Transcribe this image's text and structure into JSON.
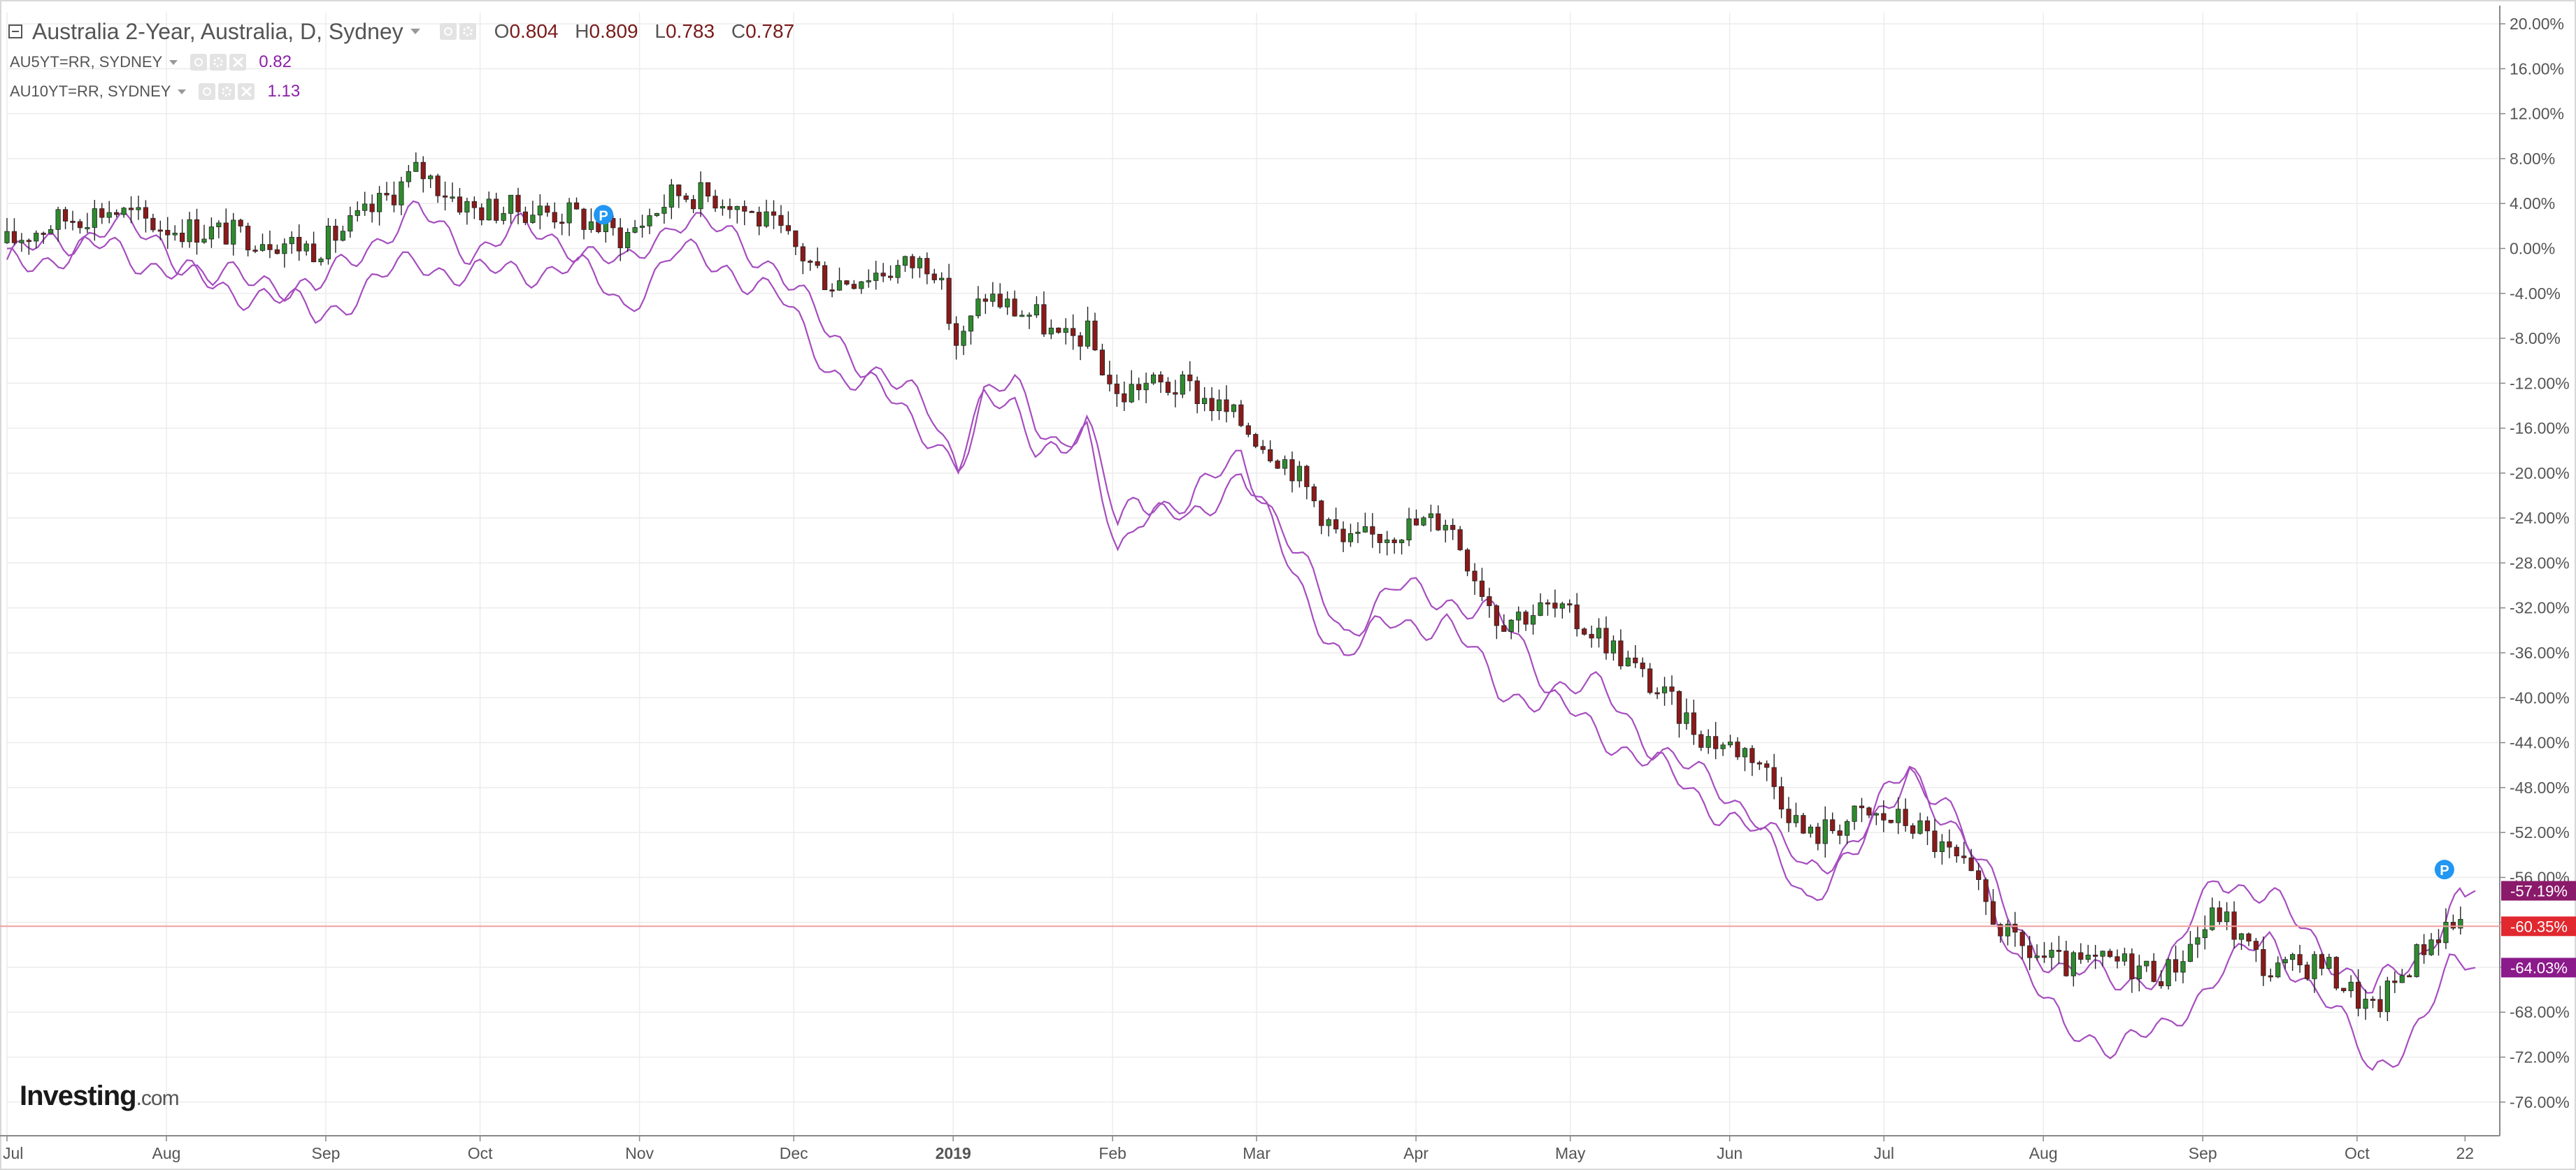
{
  "legend": {
    "main_title": "Australia 2-Year, Australia, D, Sydney",
    "ohlc": {
      "o_label": "O",
      "o": "0.804",
      "h_label": "H",
      "h": "0.809",
      "l_label": "L",
      "l": "0.783",
      "c_label": "C",
      "c": "0.787"
    },
    "series": [
      {
        "name": "AU5YT=RR, SYDNEY",
        "value": "0.82"
      },
      {
        "name": "AU10YT=RR, SYDNEY",
        "value": "1.13"
      }
    ]
  },
  "logo": {
    "brand": "Investing",
    "suffix": ".com"
  },
  "colors": {
    "up": "#2e8b2e",
    "down": "#8b1a1a",
    "compare_line": "#a64dbf",
    "badge_5y": "#8b1a6b",
    "badge_main": "#e0282e",
    "badge_10y": "#8b1a8b",
    "marker": "#2196f3",
    "grid": "#ececec",
    "current_line": "#f2a0a0"
  },
  "chart_data": {
    "type": "line",
    "title": "Australia 2-Year, Australia, D, Sydney",
    "xlabel": "",
    "ylabel": "",
    "y_unit": "%",
    "ylim": [
      -79.0,
      21.0
    ],
    "y_ticks": [
      "20.00%",
      "16.00%",
      "12.00%",
      "8.00%",
      "4.00%",
      "0.00%",
      "-4.00%",
      "-8.00%",
      "-12.00%",
      "-16.00%",
      "-20.00%",
      "-24.00%",
      "-28.00%",
      "-32.00%",
      "-36.00%",
      "-40.00%",
      "-44.00%",
      "-48.00%",
      "-52.00%",
      "-56.00%",
      "-60.00%",
      "-64.00%",
      "-68.00%",
      "-72.00%",
      "-76.00%"
    ],
    "x_ticks": [
      {
        "label": "Jul",
        "t": 0
      },
      {
        "label": "Aug",
        "t": 31
      },
      {
        "label": "Sep",
        "t": 62
      },
      {
        "label": "Oct",
        "t": 92
      },
      {
        "label": "Nov",
        "t": 123
      },
      {
        "label": "Dec",
        "t": 153
      },
      {
        "label": "2019",
        "t": 184
      },
      {
        "label": "Feb",
        "t": 215
      },
      {
        "label": "Mar",
        "t": 243
      },
      {
        "label": "Apr",
        "t": 274
      },
      {
        "label": "May",
        "t": 304
      },
      {
        "label": "Jun",
        "t": 335
      },
      {
        "label": "Jul",
        "t": 365
      },
      {
        "label": "Aug",
        "t": 396
      },
      {
        "label": "Sep",
        "t": 427
      },
      {
        "label": "Oct",
        "t": 457
      },
      {
        "label": "22",
        "t": 478
      }
    ],
    "candles": {
      "name": "Australia 2-Year",
      "close_t": [
        0,
        10,
        20,
        30,
        40,
        50,
        60,
        70,
        80,
        90,
        100,
        110,
        120,
        130,
        140,
        150,
        160,
        170,
        180,
        185,
        190,
        196,
        200,
        205,
        210,
        216,
        220,
        230,
        240,
        250,
        260,
        270,
        280,
        290,
        300,
        310,
        320,
        330,
        340,
        350,
        360,
        370,
        380,
        390,
        400,
        410,
        420,
        430,
        440,
        450,
        460,
        470,
        475,
        480
      ],
      "close": [
        0.5,
        2.5,
        3.5,
        2.0,
        1.5,
        1.0,
        0.0,
        3.0,
        7.0,
        3.5,
        3.5,
        3.0,
        1.0,
        5.0,
        4.5,
        1.5,
        -3.0,
        -2.0,
        -1.0,
        -9.0,
        -4.0,
        -5.5,
        -6.0,
        -8.5,
        -7.5,
        -13.5,
        -12.0,
        -12.5,
        -15.5,
        -19.5,
        -26.5,
        -25.0,
        -24.0,
        -33.0,
        -32.0,
        -34.5,
        -39.0,
        -43.5,
        -45.0,
        -52.5,
        -50.5,
        -51.0,
        -55.0,
        -62.0,
        -64.0,
        -63.5,
        -64.5,
        -59.0,
        -64.5,
        -63.5,
        -68.0,
        -62.0,
        -60.0,
        -60.35
      ]
    },
    "series": [
      {
        "name": "AU5YT=RR, SYDNEY",
        "current": "-57.19%",
        "t": [
          0,
          10,
          20,
          30,
          40,
          50,
          60,
          70,
          80,
          90,
          100,
          110,
          120,
          130,
          140,
          150,
          160,
          170,
          180,
          185,
          190,
          196,
          200,
          205,
          210,
          216,
          220,
          230,
          240,
          250,
          260,
          270,
          280,
          290,
          300,
          310,
          320,
          330,
          340,
          350,
          360,
          370,
          380,
          390,
          400,
          410,
          420,
          430,
          440,
          450,
          460,
          470,
          475,
          480
        ],
        "values": [
          -1.0,
          0.5,
          2.0,
          0.5,
          -3.0,
          -2.5,
          -4.0,
          0.5,
          3.0,
          0.0,
          1.5,
          0.5,
          -2.0,
          3.0,
          1.0,
          -1.5,
          -8.0,
          -11.0,
          -15.0,
          -19.0,
          -13.0,
          -12.5,
          -15.5,
          -17.0,
          -15.5,
          -25.0,
          -22.0,
          -23.0,
          -18.0,
          -27.0,
          -34.0,
          -30.5,
          -31.0,
          -33.0,
          -38.5,
          -39.5,
          -44.0,
          -47.5,
          -50.0,
          -56.0,
          -52.0,
          -46.5,
          -52.0,
          -60.0,
          -64.5,
          -65.0,
          -64.5,
          -55.5,
          -58.0,
          -62.0,
          -66.5,
          -62.5,
          -58.5,
          -57.19
        ]
      },
      {
        "name": "AU10YT=RR, SYDNEY",
        "current": "-64.03%",
        "t": [
          0,
          10,
          20,
          30,
          40,
          50,
          60,
          70,
          80,
          90,
          100,
          110,
          120,
          130,
          140,
          150,
          160,
          170,
          180,
          185,
          190,
          196,
          200,
          205,
          210,
          216,
          220,
          230,
          240,
          250,
          260,
          270,
          280,
          290,
          300,
          310,
          320,
          330,
          340,
          350,
          360,
          370,
          380,
          390,
          400,
          410,
          420,
          430,
          440,
          450,
          460,
          470,
          475,
          480
        ],
        "values": [
          -1.5,
          -0.5,
          0.0,
          -1.5,
          -3.5,
          -4.0,
          -6.0,
          -3.5,
          -1.0,
          -2.5,
          -2.0,
          -1.5,
          -5.0,
          -0.5,
          -1.5,
          -4.5,
          -10.5,
          -13.0,
          -16.5,
          -19.5,
          -14.0,
          -13.5,
          -17.0,
          -18.5,
          -17.0,
          -26.5,
          -23.5,
          -24.5,
          -19.5,
          -29.0,
          -36.5,
          -33.0,
          -33.5,
          -39.0,
          -40.5,
          -43.0,
          -46.0,
          -49.0,
          -52.0,
          -57.5,
          -54.0,
          -46.0,
          -52.0,
          -62.0,
          -70.0,
          -70.5,
          -70.0,
          -64.0,
          -62.0,
          -66.0,
          -73.5,
          -68.5,
          -64.5,
          -64.03
        ]
      }
    ],
    "current_value_label": "-60.35%",
    "markers": [
      {
        "t": 116,
        "label": "P"
      },
      {
        "t": 474,
        "label": "P"
      }
    ]
  }
}
